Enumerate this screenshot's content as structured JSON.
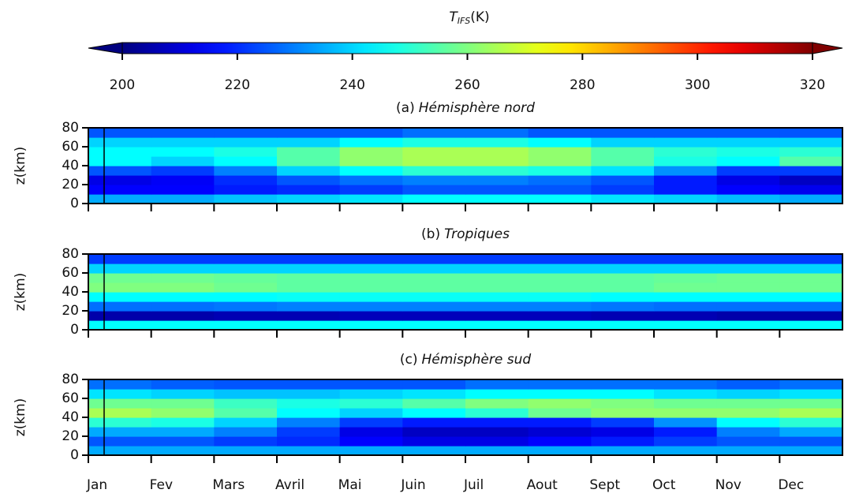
{
  "chart_data": {
    "type": "heatmap",
    "colorbar": {
      "label": "T",
      "label_sub": "IFS",
      "label_unit": "(K)",
      "lim": [
        200,
        320
      ],
      "ticks": [
        200,
        220,
        240,
        260,
        280,
        300,
        320
      ],
      "extend": "both"
    },
    "categories": [
      "Jan",
      "Fev",
      "Mars",
      "Avril",
      "Mai",
      "Juin",
      "Juil",
      "Aout",
      "Sept",
      "Oct",
      "Nov",
      "Dec"
    ],
    "ylabel": "z(km)",
    "ylim": [
      0,
      80
    ],
    "yticks": [
      0,
      20,
      40,
      60,
      80
    ],
    "y": [
      5,
      15,
      25,
      35,
      45,
      55,
      65,
      75
    ],
    "panels": [
      {
        "title_prefix": "(a)",
        "title": "Hémisphère nord",
        "values": [
          [
            235,
            235,
            238,
            240,
            242,
            245,
            245,
            245,
            242,
            240,
            237,
            235
          ],
          [
            215,
            215,
            218,
            220,
            222,
            225,
            225,
            225,
            222,
            218,
            215,
            213
          ],
          [
            212,
            214,
            220,
            225,
            228,
            230,
            230,
            228,
            225,
            218,
            212,
            208
          ],
          [
            225,
            222,
            230,
            240,
            245,
            250,
            250,
            248,
            242,
            232,
            222,
            222
          ],
          [
            245,
            240,
            245,
            255,
            262,
            265,
            265,
            262,
            255,
            248,
            245,
            255
          ],
          [
            245,
            245,
            248,
            255,
            262,
            265,
            265,
            262,
            255,
            250,
            248,
            250
          ],
          [
            240,
            240,
            240,
            240,
            245,
            248,
            248,
            245,
            240,
            240,
            240,
            240
          ],
          [
            225,
            225,
            225,
            225,
            225,
            228,
            228,
            225,
            225,
            225,
            225,
            225
          ]
        ]
      },
      {
        "title_prefix": "(b)",
        "title": "Tropiques",
        "values": [
          [
            245,
            245,
            245,
            245,
            245,
            245,
            245,
            245,
            245,
            245,
            245,
            245
          ],
          [
            205,
            205,
            206,
            206,
            207,
            207,
            207,
            207,
            206,
            206,
            205,
            205
          ],
          [
            228,
            228,
            229,
            230,
            230,
            230,
            230,
            230,
            229,
            228,
            228,
            228
          ],
          [
            245,
            245,
            245,
            246,
            246,
            246,
            246,
            246,
            245,
            245,
            245,
            245
          ],
          [
            260,
            260,
            258,
            256,
            256,
            256,
            256,
            256,
            256,
            258,
            258,
            258
          ],
          [
            258,
            258,
            257,
            256,
            256,
            256,
            256,
            256,
            256,
            257,
            258,
            258
          ],
          [
            240,
            240,
            240,
            240,
            240,
            240,
            240,
            240,
            240,
            240,
            240,
            240
          ],
          [
            222,
            222,
            222,
            222,
            222,
            222,
            222,
            222,
            222,
            222,
            222,
            222
          ]
        ]
      },
      {
        "title_prefix": "(c)",
        "title": "Hémisphère sud",
        "values": [
          [
            235,
            235,
            235,
            235,
            235,
            235,
            235,
            235,
            235,
            235,
            235,
            235
          ],
          [
            225,
            225,
            222,
            220,
            215,
            212,
            212,
            215,
            218,
            222,
            225,
            225
          ],
          [
            235,
            235,
            230,
            222,
            212,
            208,
            208,
            210,
            212,
            218,
            230,
            235
          ],
          [
            250,
            248,
            240,
            230,
            222,
            218,
            218,
            218,
            222,
            232,
            245,
            250
          ],
          [
            265,
            262,
            255,
            245,
            240,
            245,
            250,
            258,
            262,
            262,
            262,
            265
          ],
          [
            258,
            258,
            252,
            248,
            250,
            255,
            260,
            262,
            260,
            258,
            258,
            258
          ],
          [
            242,
            240,
            238,
            238,
            240,
            242,
            245,
            245,
            245,
            242,
            240,
            242
          ],
          [
            228,
            226,
            225,
            225,
            225,
            225,
            228,
            228,
            228,
            228,
            226,
            228
          ]
        ]
      }
    ]
  }
}
